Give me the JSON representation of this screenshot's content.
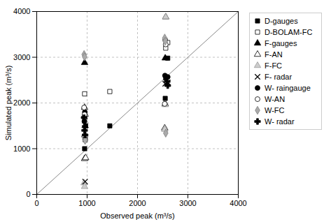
{
  "chart_data": {
    "type": "scatter",
    "xlabel": "Observed peak (m³/s)",
    "ylabel": "Simulated peak (m³/s)",
    "xlim": [
      0,
      4000
    ],
    "ylim": [
      0,
      4000
    ],
    "xticks": [
      0,
      1000,
      2000,
      3000,
      4000
    ],
    "yticks": [
      0,
      1000,
      2000,
      3000,
      4000
    ],
    "grid": true,
    "legend": "right",
    "series": [
      {
        "name": "D-gauges",
        "color": "#000000",
        "marker": "square",
        "x": [
          950,
          960,
          970,
          1450,
          2550,
          2560,
          2600
        ],
        "values": [
          1000,
          1200,
          1500,
          1500,
          2100,
          2550,
          2980
        ]
      },
      {
        "name": "D-BOLAM-FC",
        "color": "#ffffff",
        "marker": "square",
        "x": [
          950,
          960,
          1450,
          2560,
          2600
        ],
        "values": [
          2200,
          1200,
          2250,
          3200,
          3320
        ]
      },
      {
        "name": "F-gauges",
        "color": "#000000",
        "marker": "triangle",
        "x": [
          950,
          960,
          2550
        ],
        "values": [
          2880,
          1500,
          2980
        ]
      },
      {
        "name": "F-AN",
        "color": "#ffffff",
        "marker": "triangle",
        "x": [
          950,
          950,
          950,
          960,
          970,
          2540,
          2550,
          2560
        ],
        "values": [
          780,
          1300,
          1900,
          1750,
          800,
          1450,
          1980,
          3880
        ]
      },
      {
        "name": "F-FC",
        "color": "#cccccc",
        "marker": "triangle",
        "x": [
          940,
          950,
          955,
          960,
          2540,
          2550,
          2560
        ],
        "values": [
          250,
          170,
          1300,
          1600,
          1420,
          1960,
          3880
        ]
      },
      {
        "name": "F- radar",
        "color": "#000000",
        "marker": "times",
        "x": [
          950,
          955,
          960,
          2550,
          2600
        ],
        "values": [
          1450,
          1700,
          280,
          2420,
          2450
        ]
      },
      {
        "name": "W- raingauge",
        "color": "#000000",
        "marker": "circle",
        "x": [
          945,
          955,
          2545,
          2600
        ],
        "values": [
          1600,
          1800,
          2600,
          2570
        ]
      },
      {
        "name": "W-AN",
        "color": "#ffffff",
        "marker": "circle",
        "x": [
          940,
          950,
          960,
          2540,
          2550,
          2560
        ],
        "values": [
          1900,
          1750,
          1200,
          1980,
          3380,
          3280
        ]
      },
      {
        "name": "W-FC",
        "color": "#aaaaaa",
        "marker": "diamond",
        "x": [
          940,
          950,
          960,
          2540,
          2550,
          2560
        ],
        "values": [
          3060,
          3010,
          1180,
          3420,
          3350,
          1340
        ]
      },
      {
        "name": "W- radar",
        "color": "#000000",
        "marker": "cross",
        "x": [
          940,
          950,
          960,
          2590,
          2600
        ],
        "values": [
          1680,
          1400,
          1300,
          2470,
          2380
        ]
      }
    ]
  }
}
